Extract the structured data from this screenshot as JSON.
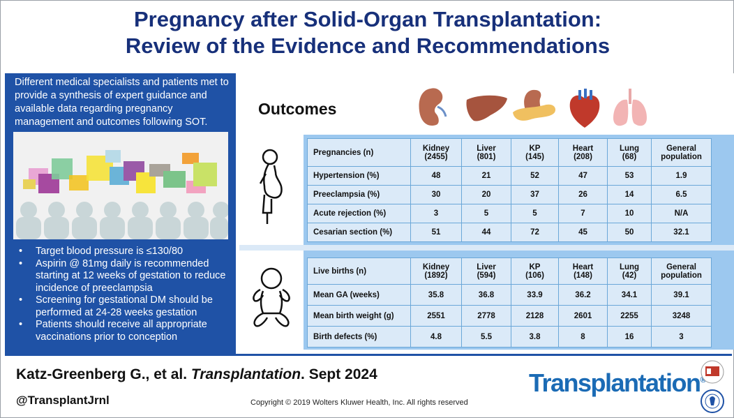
{
  "title": {
    "line1": "Pregnancy after Solid-Organ Transplantation:",
    "line2": "Review of the Evidence and Recommendations"
  },
  "left": {
    "intro": "Different medical specialists and patients met to provide a synthesis of expert guidance and available data regarding pregnancy management and outcomes following SOT.",
    "bullets": [
      "Target blood pressure is ≤130/80",
      "Aspirin @ 81mg daily is recommended starting at 12 weeks of gestation to reduce incidence of preeclampsia",
      "Screening for gestational DM should be performed at 24-28 weeks gestation",
      "Patients should receive all appropriate vaccinations prior to conception"
    ]
  },
  "outcomes": {
    "title": "Outcomes",
    "organ_icons": [
      "kidney-icon",
      "liver-icon",
      "pancreas-kidney-icon",
      "heart-icon",
      "lung-icon"
    ]
  },
  "pregnancy_table": {
    "header": {
      "label": "Pregnancies (n)",
      "cols": [
        {
          "name": "Kidney",
          "n": "(2455)"
        },
        {
          "name": "Liver",
          "n": "(801)"
        },
        {
          "name": "KP",
          "n": "(145)"
        },
        {
          "name": "Heart",
          "n": "(208)"
        },
        {
          "name": "Lung",
          "n": "(68)"
        },
        {
          "name": "General",
          "n": "population"
        }
      ]
    },
    "rows": [
      {
        "label": "Hypertension (%)",
        "values": [
          "48",
          "21",
          "52",
          "47",
          "53",
          "1.9"
        ]
      },
      {
        "label": "Preeclampsia (%)",
        "values": [
          "30",
          "20",
          "37",
          "26",
          "14",
          "6.5"
        ]
      },
      {
        "label": "Acute rejection (%)",
        "values": [
          "3",
          "5",
          "5",
          "7",
          "10",
          "N/A"
        ]
      },
      {
        "label": "Cesarian section (%)",
        "values": [
          "51",
          "44",
          "72",
          "45",
          "50",
          "32.1"
        ]
      }
    ]
  },
  "births_table": {
    "header": {
      "label": "Live births (n)",
      "cols": [
        {
          "name": "Kidney",
          "n": "(1892)"
        },
        {
          "name": "Liver",
          "n": "(594)"
        },
        {
          "name": "KP",
          "n": "(106)"
        },
        {
          "name": "Heart",
          "n": "(148)"
        },
        {
          "name": "Lung",
          "n": "(42)"
        },
        {
          "name": "General",
          "n": "population"
        }
      ]
    },
    "rows": [
      {
        "label": "Mean GA (weeks)",
        "values": [
          "35.8",
          "36.8",
          "33.9",
          "36.2",
          "34.1",
          "39.1"
        ]
      },
      {
        "label": "Mean birth weight (g)",
        "values": [
          "2551",
          "2778",
          "2128",
          "2601",
          "2255",
          "3248"
        ]
      },
      {
        "label": "Birth defects (%)",
        "values": [
          "4.8",
          "5.5",
          "3.8",
          "8",
          "16",
          "3"
        ]
      }
    ]
  },
  "footer": {
    "citation_authors": "Katz-Greenberg G., et al. ",
    "citation_journal": "Transplantation",
    "citation_date": ". Sept  2024",
    "handle": "@TransplantJrnl",
    "copyright": "Copyright © 2019  Wolters Kluwer Health, Inc. All rights reserved",
    "journal_logo": "Transplantation",
    "registered": "®"
  },
  "colors": {
    "title": "#17307a",
    "panel": "#1f52a6",
    "table_band": "#9cc8ef",
    "table_cell": "#dbeaf8",
    "logo": "#1b6bb5"
  }
}
